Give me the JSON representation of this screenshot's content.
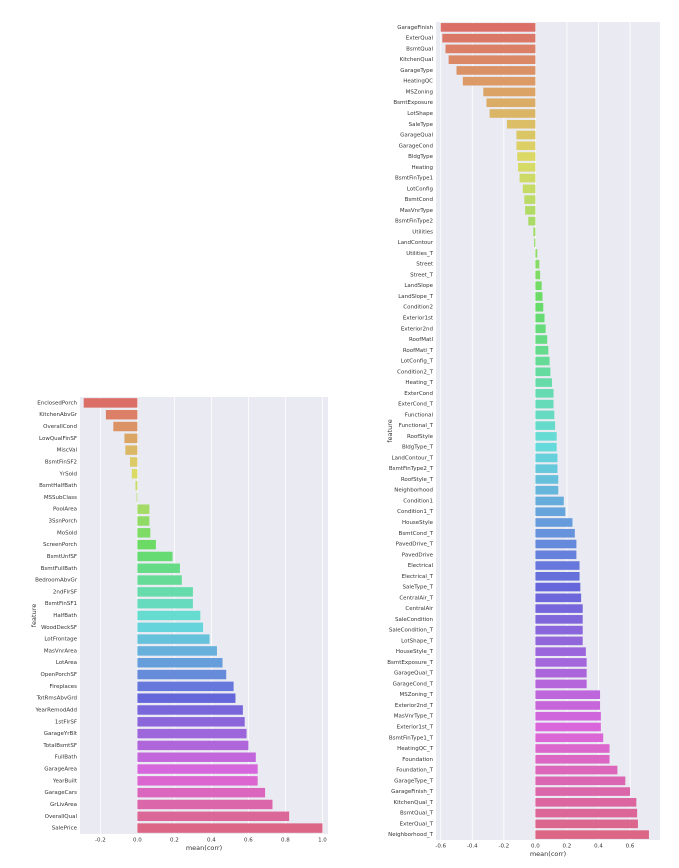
{
  "chart_data": [
    {
      "type": "barh",
      "xlabel": "mean(corr)",
      "ylabel": "feature",
      "palette": "husl",
      "grid": true,
      "categories": [
        "EnclosedPorch",
        "KitchenAbvGr",
        "OverallCond",
        "LowQualFinSF",
        "MiscVal",
        "BsmtFinSF2",
        "YrSold",
        "BsmtHalfBath",
        "MSSubClass",
        "PoolArea",
        "3SsnPorch",
        "MoSold",
        "ScreenPorch",
        "BsmtUnfSF",
        "BsmtFullBath",
        "BedroomAbvGr",
        "2ndFlrSF",
        "BsmtFinSF1",
        "HalfBath",
        "WoodDeckSF",
        "LotFrontage",
        "MasVnrArea",
        "LotArea",
        "OpenPorchSF",
        "Fireplaces",
        "TotRmsAbvGrd",
        "YearRemodAdd",
        "1stFlrSF",
        "GarageYrBlt",
        "TotalBsmtSF",
        "FullBath",
        "GarageArea",
        "YearBuilt",
        "GarageCars",
        "GrLivArea",
        "OverallQual",
        "SalePrice"
      ],
      "values": [
        -0.29,
        -0.17,
        -0.13,
        -0.07,
        -0.065,
        -0.04,
        -0.03,
        -0.01,
        -0.004,
        0.065,
        0.065,
        0.07,
        0.1,
        0.19,
        0.23,
        0.24,
        0.3,
        0.3,
        0.34,
        0.355,
        0.39,
        0.43,
        0.46,
        0.48,
        0.52,
        0.53,
        0.57,
        0.58,
        0.59,
        0.6,
        0.64,
        0.65,
        0.65,
        0.69,
        0.73,
        0.82,
        1.0
      ],
      "xlim": [
        -0.31,
        1.03
      ],
      "xticks": [
        -0.2,
        {
          "value": 0,
          "label": "0.0"
        },
        0.2,
        0.4,
        0.6,
        0.8,
        {
          "value": 1,
          "label": "1.0"
        }
      ]
    },
    {
      "type": "barh",
      "xlabel": "mean(corr)",
      "ylabel": "feature",
      "palette": "husl",
      "grid": true,
      "categories": [
        "GarageFinish",
        "ExterQual",
        "BsmtQual",
        "KitchenQual",
        "GarageType",
        "HeatingQC",
        "MSZoning",
        "BsmtExposure",
        "LotShape",
        "SaleType",
        "GarageQual",
        "GarageCond",
        "BldgType",
        "Heating",
        "BsmtFinType1",
        "LotConfig",
        "BsmtCond",
        "MasVnrType",
        "BsmtFinType2",
        "Utilities",
        "LandContour",
        "Utilities_T",
        "Street",
        "Street_T",
        "LandSlope",
        "LandSlope_T",
        "Condition2",
        "Exterior1st",
        "Exterior2nd",
        "RoofMatl",
        "RoofMatl_T",
        "LotConfig_T",
        "Condition2_T",
        "Heating_T",
        "ExterCond",
        "ExterCond_T",
        "Functional",
        "Functional_T",
        "RoofStyle",
        "BldgType_T",
        "LandContour_T",
        "BsmtFinType2_T",
        "RoofStyle_T",
        "Neighborhood",
        "Condition1",
        "Condition1_T",
        "HouseStyle",
        "BsmtCond_T",
        "PavedDrive_T",
        "PavedDrive",
        "Electrical",
        "Electrical_T",
        "SaleType_T",
        "CentralAir_T",
        "CentralAir",
        "SaleCondition",
        "SaleCondition_T",
        "LotShape_T",
        "HouseStyle_T",
        "BsmtExposure_T",
        "GarageQual_T",
        "GarageCond_T",
        "MSZoning_T",
        "Exterior2nd_T",
        "MasVnrType_T",
        "Exterior1st_T",
        "BsmtFinType1_T",
        "HeatingQC_T",
        "Foundation",
        "Foundation_T",
        "GarageType_T",
        "GarageFinish_T",
        "KitchenQual_T",
        "BsmtQual_T",
        "ExterQual_T",
        "Neighborhood_T"
      ],
      "values": [
        -0.6,
        -0.59,
        -0.57,
        -0.55,
        -0.5,
        -0.46,
        -0.33,
        -0.31,
        -0.29,
        -0.18,
        -0.12,
        -0.12,
        -0.115,
        -0.11,
        -0.1,
        -0.08,
        -0.07,
        -0.065,
        -0.045,
        -0.013,
        -0.008,
        0.012,
        0.025,
        0.03,
        0.04,
        0.045,
        0.05,
        0.058,
        0.065,
        0.075,
        0.082,
        0.09,
        0.095,
        0.105,
        0.115,
        0.115,
        0.12,
        0.125,
        0.135,
        0.135,
        0.14,
        0.14,
        0.145,
        0.145,
        0.18,
        0.19,
        0.235,
        0.25,
        0.26,
        0.26,
        0.28,
        0.28,
        0.285,
        0.29,
        0.3,
        0.3,
        0.3,
        0.3,
        0.32,
        0.325,
        0.325,
        0.325,
        0.41,
        0.41,
        0.415,
        0.415,
        0.43,
        0.47,
        0.47,
        0.52,
        0.57,
        0.6,
        0.64,
        0.645,
        0.65,
        0.72
      ],
      "xlim": [
        -0.63,
        0.79
      ],
      "xticks": [
        -0.6,
        -0.4,
        -0.2,
        {
          "value": 0,
          "label": "0.0"
        },
        0.2,
        0.4,
        0.6
      ]
    }
  ]
}
